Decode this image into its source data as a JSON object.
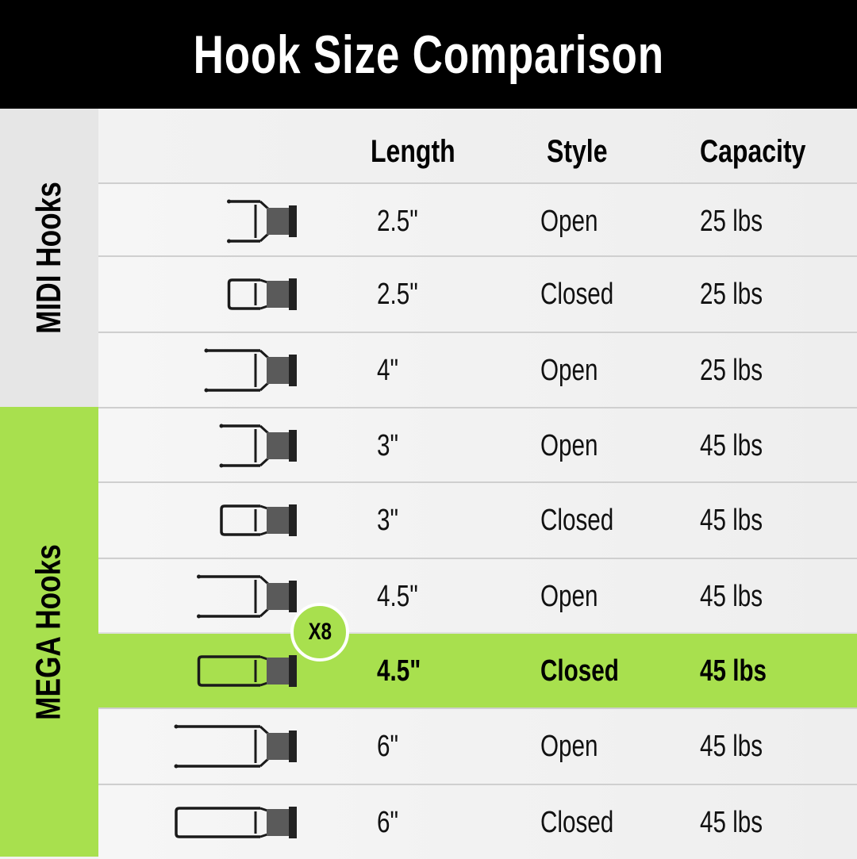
{
  "title": "Hook Size Comparison",
  "groups": {
    "midi": "MIDI Hooks",
    "mega": "MEGA Hooks"
  },
  "columns": {
    "length": "Length",
    "style": "Style",
    "capacity": "Capacity"
  },
  "badge": "X8",
  "colors": {
    "accent": "#a8e04e",
    "header": "#000000"
  },
  "rows": [
    {
      "length": "2.5\"",
      "style": "Open",
      "capacity": "25 lbs",
      "inches": 2.5,
      "group": "midi"
    },
    {
      "length": "2.5\"",
      "style": "Closed",
      "capacity": "25 lbs",
      "inches": 2.5,
      "group": "midi"
    },
    {
      "length": "4\"",
      "style": "Open",
      "capacity": "25 lbs",
      "inches": 4,
      "group": "midi"
    },
    {
      "length": "3\"",
      "style": "Open",
      "capacity": "45 lbs",
      "inches": 3,
      "group": "mega"
    },
    {
      "length": "3\"",
      "style": "Closed",
      "capacity": "45 lbs",
      "inches": 3,
      "group": "mega"
    },
    {
      "length": "4.5\"",
      "style": "Open",
      "capacity": "45 lbs",
      "inches": 4.5,
      "group": "mega"
    },
    {
      "length": "4.5\"",
      "style": "Closed",
      "capacity": "45 lbs",
      "inches": 4.5,
      "group": "mega",
      "highlighted": true
    },
    {
      "length": "6\"",
      "style": "Open",
      "capacity": "45 lbs",
      "inches": 6,
      "group": "mega"
    },
    {
      "length": "6\"",
      "style": "Closed",
      "capacity": "45 lbs",
      "inches": 6,
      "group": "mega"
    }
  ]
}
